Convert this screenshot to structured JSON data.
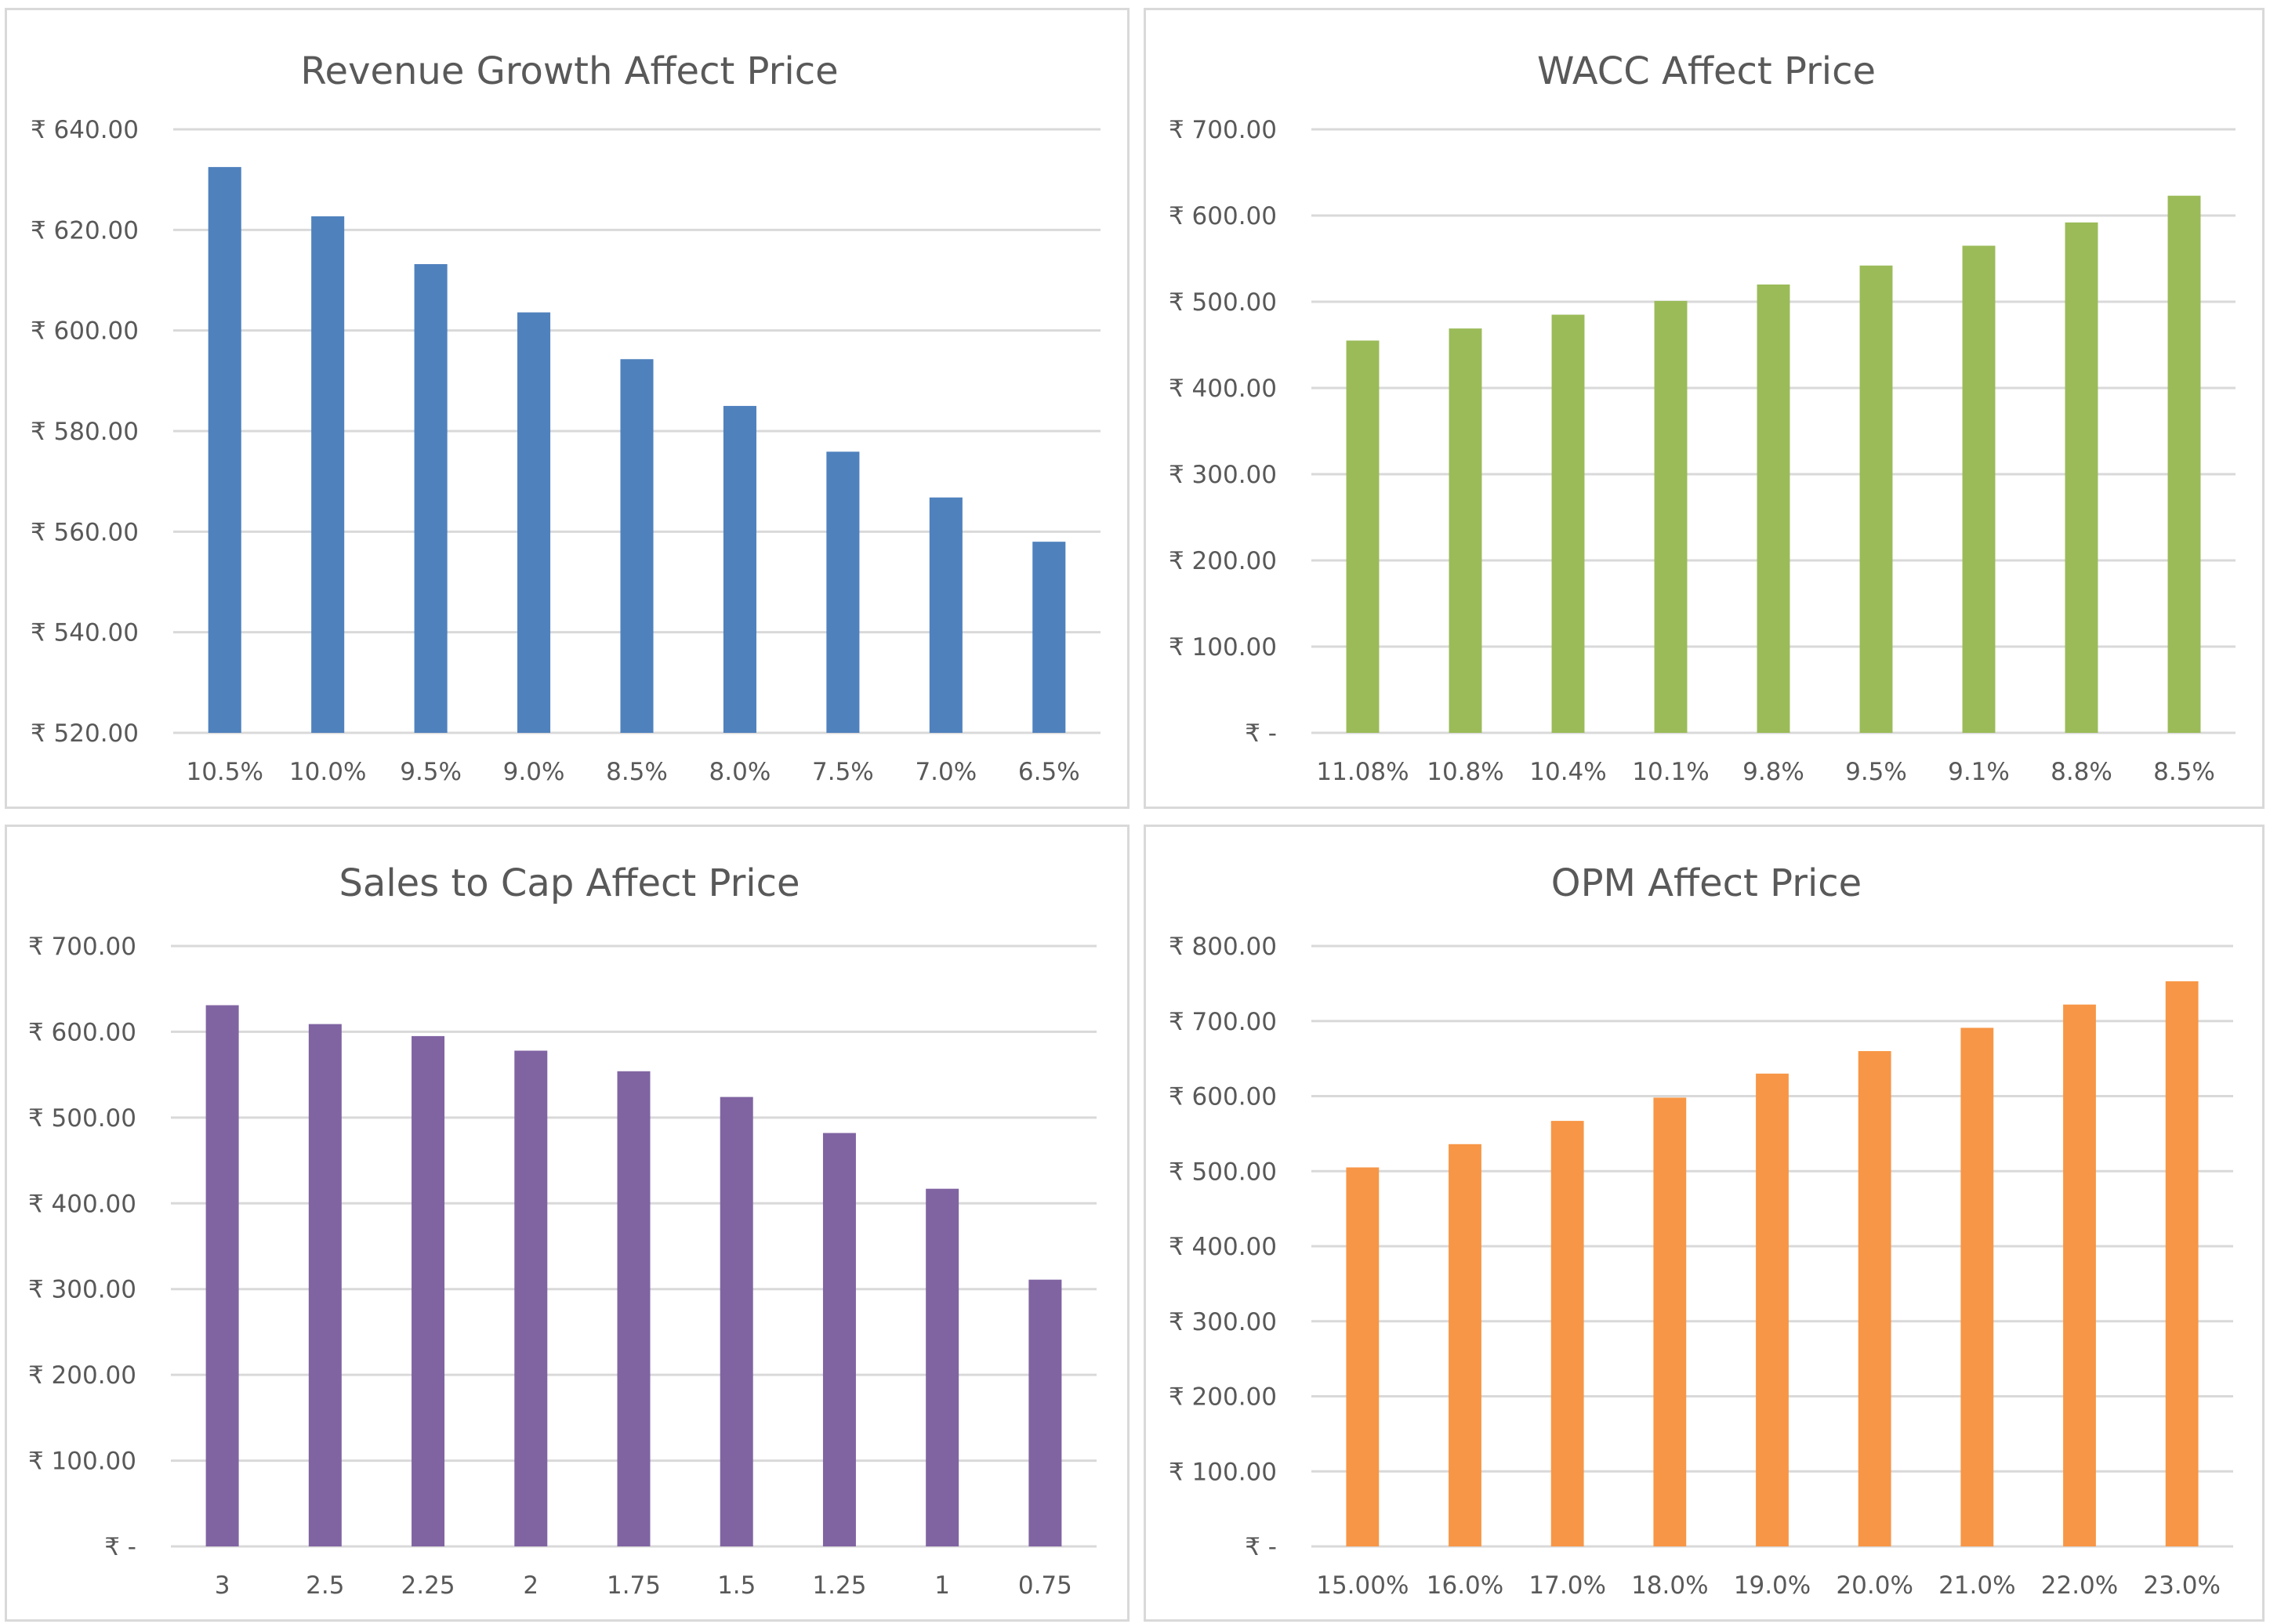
{
  "chart_data": [
    {
      "type": "bar",
      "title": "Revenue Growth Affect Price",
      "categories": [
        "10.5%",
        "10.0%",
        "9.5%",
        "9.0%",
        "8.5%",
        "8.0%",
        "7.5%",
        "7.0%",
        "6.5%"
      ],
      "values": [
        632.5,
        622.7,
        613.2,
        603.6,
        594.3,
        585.0,
        575.9,
        566.8,
        558.0
      ],
      "yticks": [
        "₹ 520.00",
        "₹ 540.00",
        "₹ 560.00",
        "₹ 580.00",
        "₹ 600.00",
        "₹ 620.00",
        "₹ 640.00"
      ],
      "ylim": [
        520,
        640
      ],
      "color": "#4f81bd",
      "grid": true
    },
    {
      "type": "bar",
      "title": "WACC Affect Price",
      "categories": [
        "11.08%",
        "10.8%",
        "10.4%",
        "10.1%",
        "9.8%",
        "9.5%",
        "9.1%",
        "8.8%",
        "8.5%"
      ],
      "values": [
        455,
        469,
        485,
        501,
        520,
        542,
        565,
        592,
        623
      ],
      "yticks": [
        "₹ -",
        "₹ 100.00",
        "₹ 200.00",
        "₹ 300.00",
        "₹ 400.00",
        "₹ 500.00",
        "₹ 600.00",
        "₹ 700.00"
      ],
      "ylim": [
        0,
        700
      ],
      "color": "#9bbb59",
      "grid": true
    },
    {
      "type": "bar",
      "title": "Sales to Cap Affect Price",
      "categories": [
        "3",
        "2.5",
        "2.25",
        "2",
        "1.75",
        "1.5",
        "1.25",
        "1",
        "0.75"
      ],
      "values": [
        631,
        609,
        595,
        578,
        554,
        524,
        482,
        417,
        311
      ],
      "yticks": [
        "₹ -",
        "₹ 100.00",
        "₹ 200.00",
        "₹ 300.00",
        "₹ 400.00",
        "₹ 500.00",
        "₹ 600.00",
        "₹ 700.00"
      ],
      "ylim": [
        0,
        700
      ],
      "color": "#8064a2",
      "grid": true
    },
    {
      "type": "bar",
      "title": "OPM Affect Price",
      "categories": [
        "15.00%",
        "16.0%",
        "17.0%",
        "18.0%",
        "19.0%",
        "20.0%",
        "21.0%",
        "22.0%",
        "23.0%"
      ],
      "values": [
        505,
        536,
        567,
        598,
        630,
        660,
        691,
        722,
        753
      ],
      "yticks": [
        "₹ -",
        "₹ 100.00",
        "₹ 200.00",
        "₹ 300.00",
        "₹ 400.00",
        "₹ 500.00",
        "₹ 600.00",
        "₹ 700.00",
        "₹ 800.00"
      ],
      "ylim": [
        0,
        800
      ],
      "color": "#f79646",
      "grid": true
    }
  ]
}
